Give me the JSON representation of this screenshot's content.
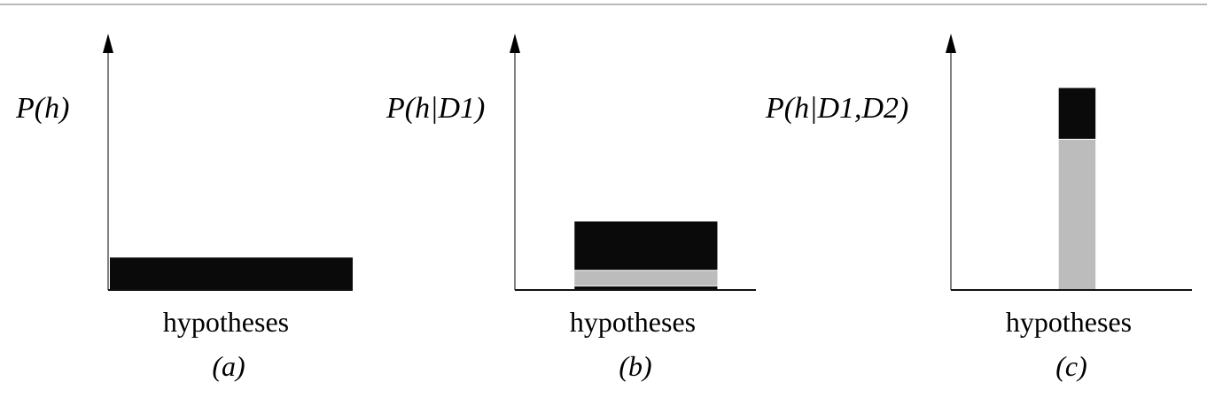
{
  "chart_data": [
    {
      "type": "bar",
      "ylabel": "P(h)",
      "xlabel": "hypotheses",
      "panel_label": "(a)",
      "ylim": [
        0,
        1
      ],
      "stacked": true,
      "x_range": [
        0,
        1
      ],
      "segments": [
        {
          "shade": "dark",
          "color": "#0a0a0a",
          "x": [
            0.0,
            1.0
          ],
          "y": [
            0.0,
            0.135
          ]
        }
      ]
    },
    {
      "type": "bar",
      "ylabel": "P(h|D1)",
      "xlabel": "hypotheses",
      "panel_label": "(b)",
      "ylim": [
        0,
        1
      ],
      "stacked": true,
      "x_range": [
        0,
        1
      ],
      "segments": [
        {
          "shade": "dark",
          "color": "#0a0a0a",
          "x": [
            0.24,
            0.84
          ],
          "y": [
            0.0,
            0.015
          ]
        },
        {
          "shade": "gray",
          "color": "#bcbcbc",
          "x": [
            0.24,
            0.84
          ],
          "y": [
            0.015,
            0.08
          ]
        },
        {
          "shade": "dark",
          "color": "#0a0a0a",
          "x": [
            0.24,
            0.84
          ],
          "y": [
            0.08,
            0.285
          ]
        }
      ]
    },
    {
      "type": "bar",
      "ylabel": "P(h|D1,D2)",
      "xlabel": "hypotheses",
      "panel_label": "(c)",
      "ylim": [
        0,
        1
      ],
      "stacked": true,
      "x_range": [
        0,
        1
      ],
      "segments": [
        {
          "shade": "gray",
          "color": "#bcbcbc",
          "x": [
            0.44,
            0.6
          ],
          "y": [
            0.0,
            0.625
          ]
        },
        {
          "shade": "dark",
          "color": "#0a0a0a",
          "x": [
            0.44,
            0.6
          ],
          "y": [
            0.625,
            0.84
          ]
        }
      ]
    }
  ]
}
